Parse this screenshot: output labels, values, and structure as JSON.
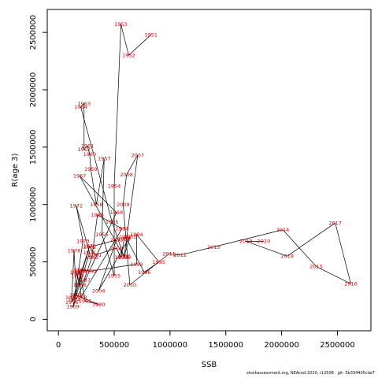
{
  "chart_data": {
    "type": "scatter",
    "title": "",
    "xlabel": "SSB",
    "ylabel": "R(age 3)",
    "xlim": [
      -100000,
      2800000
    ],
    "ylim": [
      -100000,
      2700000
    ],
    "x_ticks": [
      0,
      500000,
      1000000,
      1500000,
      2000000,
      2500000
    ],
    "x_tick_labels": [
      "0",
      "500000",
      "1000000",
      "1500000",
      "2000000",
      "2500000"
    ],
    "y_ticks": [
      0,
      500000,
      1000000,
      1500000,
      2000000,
      2500000
    ],
    "y_tick_labels": [
      "0",
      "500000",
      "1000000",
      "1500000",
      "2000000",
      "2500000"
    ],
    "connected": true,
    "point_color": "#e00000",
    "line_color": "#000000",
    "points": [
      {
        "label": "1951",
        "x": 830000,
        "y": 2480000
      },
      {
        "label": "1952",
        "x": 630000,
        "y": 2300000
      },
      {
        "label": "1953",
        "x": 560000,
        "y": 2570000
      },
      {
        "label": "1954",
        "x": 500000,
        "y": 1160000
      },
      {
        "label": "1955",
        "x": 500000,
        "y": 380000
      },
      {
        "label": "1956",
        "x": 390000,
        "y": 740000
      },
      {
        "label": "1957",
        "x": 410000,
        "y": 1400000
      },
      {
        "label": "1958",
        "x": 340000,
        "y": 1000000
      },
      {
        "label": "1959",
        "x": 290000,
        "y": 1310000
      },
      {
        "label": "1960",
        "x": 280000,
        "y": 1440000
      },
      {
        "label": "1961",
        "x": 260000,
        "y": 1510000
      },
      {
        "label": "1962",
        "x": 230000,
        "y": 1480000
      },
      {
        "label": "1963",
        "x": 230000,
        "y": 1880000
      },
      {
        "label": "1964",
        "x": 200000,
        "y": 1850000
      },
      {
        "label": "1965",
        "x": 480000,
        "y": 850000
      },
      {
        "label": "1966",
        "x": 590000,
        "y": 540000
      },
      {
        "label": "1967",
        "x": 190000,
        "y": 1250000
      },
      {
        "label": "1968",
        "x": 520000,
        "y": 930000
      },
      {
        "label": "1969",
        "x": 130000,
        "y": 110000
      },
      {
        "label": "1970",
        "x": 160000,
        "y": 210000
      },
      {
        "label": "1971",
        "x": 280000,
        "y": 580000
      },
      {
        "label": "1972",
        "x": 160000,
        "y": 990000
      },
      {
        "label": "1973",
        "x": 220000,
        "y": 680000
      },
      {
        "label": "1974",
        "x": 140000,
        "y": 170000
      },
      {
        "label": "1975",
        "x": 280000,
        "y": 640000
      },
      {
        "label": "1976",
        "x": 120000,
        "y": 150000
      },
      {
        "label": "1977",
        "x": 120000,
        "y": 190000
      },
      {
        "label": "1978",
        "x": 140000,
        "y": 600000
      },
      {
        "label": "1979",
        "x": 160000,
        "y": 210000
      },
      {
        "label": "1980",
        "x": 360000,
        "y": 130000
      },
      {
        "label": "1981",
        "x": 240000,
        "y": 160000
      },
      {
        "label": "1982",
        "x": 190000,
        "y": 420000
      },
      {
        "label": "1983",
        "x": 200000,
        "y": 190000
      },
      {
        "label": "1984",
        "x": 570000,
        "y": 790000
      },
      {
        "label": "1985",
        "x": 350000,
        "y": 910000
      },
      {
        "label": "1986",
        "x": 300000,
        "y": 540000
      },
      {
        "label": "1987",
        "x": 230000,
        "y": 340000
      },
      {
        "label": "1988",
        "x": 190000,
        "y": 300000
      },
      {
        "label": "1989",
        "x": 160000,
        "y": 410000
      },
      {
        "label": "1990",
        "x": 170000,
        "y": 380000
      },
      {
        "label": "1991",
        "x": 200000,
        "y": 430000
      },
      {
        "label": "1992",
        "x": 290000,
        "y": 420000
      },
      {
        "label": "1993",
        "x": 700000,
        "y": 480000
      },
      {
        "label": "1994",
        "x": 700000,
        "y": 740000
      },
      {
        "label": "1995",
        "x": 900000,
        "y": 500000
      },
      {
        "label": "1996",
        "x": 770000,
        "y": 410000
      },
      {
        "label": "1997",
        "x": 600000,
        "y": 720000
      },
      {
        "label": "1998",
        "x": 590000,
        "y": 700000
      },
      {
        "label": "1999",
        "x": 560000,
        "y": 540000
      },
      {
        "label": "2000",
        "x": 520000,
        "y": 620000
      },
      {
        "label": "2001",
        "x": 330000,
        "y": 560000
      },
      {
        "label": "2002",
        "x": 280000,
        "y": 630000
      },
      {
        "label": "2003",
        "x": 520000,
        "y": 690000
      },
      {
        "label": "2004",
        "x": 360000,
        "y": 250000
      },
      {
        "label": "2005",
        "x": 640000,
        "y": 720000
      },
      {
        "label": "2006",
        "x": 590000,
        "y": 550000
      },
      {
        "label": "2007",
        "x": 710000,
        "y": 1430000
      },
      {
        "label": "2008",
        "x": 610000,
        "y": 1260000
      },
      {
        "label": "2009",
        "x": 580000,
        "y": 1000000
      },
      {
        "label": "2010",
        "x": 640000,
        "y": 300000
      },
      {
        "label": "2011",
        "x": 990000,
        "y": 570000
      },
      {
        "label": "2012",
        "x": 1090000,
        "y": 560000
      },
      {
        "label": "2013",
        "x": 1390000,
        "y": 630000
      },
      {
        "label": "2014",
        "x": 2010000,
        "y": 780000
      },
      {
        "label": "2015",
        "x": 2310000,
        "y": 460000
      },
      {
        "label": "2016",
        "x": 2620000,
        "y": 310000
      },
      {
        "label": "2017",
        "x": 2480000,
        "y": 840000
      },
      {
        "label": "2018",
        "x": 2050000,
        "y": 550000
      },
      {
        "label": "2019",
        "x": 1680000,
        "y": 680000
      },
      {
        "label": "2020",
        "x": 1840000,
        "y": 680000
      }
    ]
  },
  "footer": {
    "text": "stockassessment.org, NEAcod-2020, r12508 , git: 5b334405cda7"
  }
}
